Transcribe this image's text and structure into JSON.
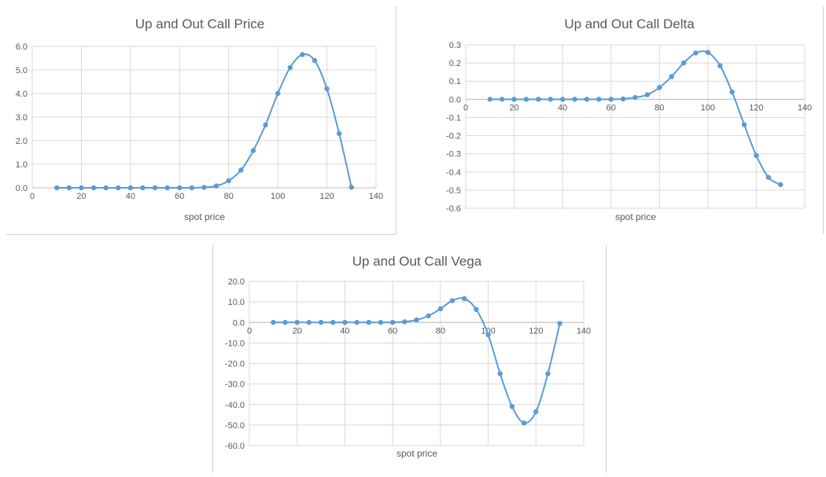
{
  "colors": {
    "series": "#5b9bd5",
    "grid": "#d9d9d9",
    "text": "#595959"
  },
  "chart_data": [
    {
      "type": "line",
      "title": "Up and Out Call Price",
      "xlabel": "spot price",
      "ylabel": "",
      "xlim": [
        0,
        140
      ],
      "ylim": [
        0,
        6
      ],
      "xticks": [
        0,
        20,
        40,
        60,
        80,
        100,
        120,
        140
      ],
      "yticks": [
        0,
        1,
        2,
        3,
        4,
        5,
        6
      ],
      "ytick_labels": [
        "0.0",
        "1.0",
        "2.0",
        "3.0",
        "4.0",
        "5.0",
        "6.0"
      ],
      "grid": true,
      "legend": "none",
      "series": [
        {
          "x": [
            10,
            15,
            20,
            25,
            30,
            35,
            40,
            45,
            50,
            55,
            60,
            65,
            70,
            75,
            80,
            85,
            90,
            95,
            100,
            105,
            110,
            115,
            120,
            125,
            130
          ],
          "y": [
            0.0,
            0.0,
            0.0,
            0.0,
            0.0,
            0.0,
            0.0,
            0.0,
            0.0,
            0.0,
            0.0,
            0.0,
            0.02,
            0.08,
            0.3,
            0.75,
            1.58,
            2.67,
            4.0,
            5.1,
            5.65,
            5.4,
            4.2,
            2.3,
            0.02
          ]
        }
      ]
    },
    {
      "type": "line",
      "title": "Up and Out Call Delta",
      "xlabel": "spot price",
      "ylabel": "",
      "xlim": [
        0,
        140
      ],
      "ylim": [
        -0.6,
        0.3
      ],
      "xticks": [
        0,
        20,
        40,
        60,
        80,
        100,
        120,
        140
      ],
      "yticks": [
        0.3,
        0.2,
        0.1,
        0.0,
        -0.1,
        -0.2,
        -0.3,
        -0.4,
        -0.5,
        -0.6
      ],
      "ytick_labels": [
        "0.3",
        "0.2",
        "0.1",
        "0.0",
        "-0.1",
        "-0.2",
        "-0.3",
        "-0.4",
        "-0.5",
        "-0.6"
      ],
      "grid": true,
      "legend": "none",
      "series": [
        {
          "x": [
            10,
            15,
            20,
            25,
            30,
            35,
            40,
            45,
            50,
            55,
            60,
            65,
            70,
            75,
            80,
            85,
            90,
            95,
            100,
            105,
            110,
            115,
            120,
            125,
            130
          ],
          "y": [
            0.0,
            0.0,
            0.0,
            0.0,
            0.0,
            0.0,
            0.0,
            0.0,
            0.0,
            0.0,
            0.0,
            0.002,
            0.01,
            0.025,
            0.065,
            0.125,
            0.2,
            0.255,
            0.258,
            0.185,
            0.04,
            -0.14,
            -0.31,
            -0.43,
            -0.47
          ]
        }
      ]
    },
    {
      "type": "line",
      "title": "Up and Out Call Vega",
      "xlabel": "spot price",
      "ylabel": "",
      "xlim": [
        0,
        140
      ],
      "ylim": [
        -60,
        20
      ],
      "xticks": [
        0,
        20,
        40,
        60,
        80,
        100,
        120,
        140
      ],
      "yticks": [
        20,
        10,
        0,
        -10,
        -20,
        -30,
        -40,
        -50,
        -60
      ],
      "ytick_labels": [
        "20.0",
        "10.0",
        "0.0",
        "-10.0",
        "-20.0",
        "-30.0",
        "-40.0",
        "-50.0",
        "-60.0"
      ],
      "grid": true,
      "legend": "none",
      "series": [
        {
          "x": [
            10,
            15,
            20,
            25,
            30,
            35,
            40,
            45,
            50,
            55,
            60,
            65,
            70,
            75,
            80,
            85,
            90,
            95,
            100,
            105,
            110,
            115,
            120,
            125,
            130
          ],
          "y": [
            0.0,
            0.0,
            0.0,
            0.0,
            0.0,
            0.0,
            0.0,
            0.0,
            0.0,
            0.0,
            0.0,
            0.3,
            1.2,
            3.2,
            6.6,
            10.6,
            11.6,
            6.3,
            -6.0,
            -25.0,
            -41.0,
            -49.0,
            -43.5,
            -25.0,
            -0.5
          ]
        }
      ]
    }
  ]
}
